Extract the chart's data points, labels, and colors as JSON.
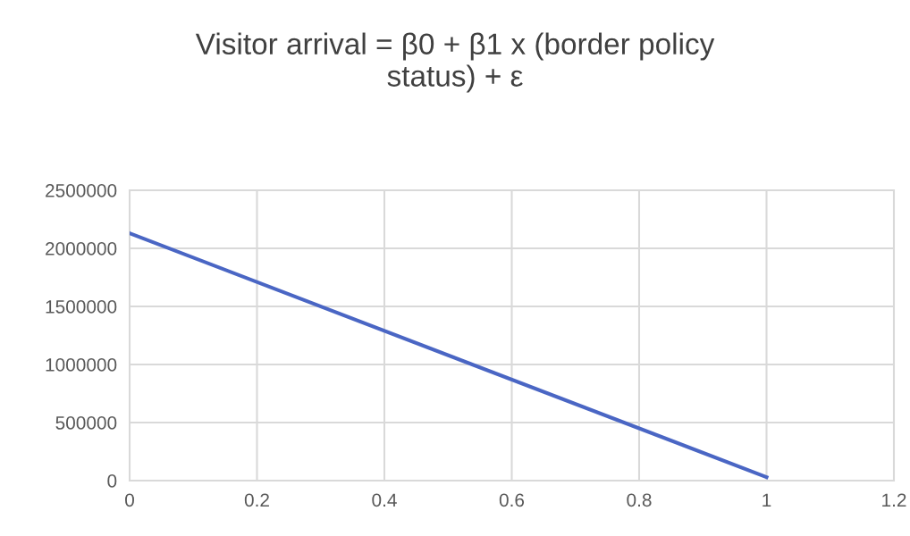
{
  "chart_data": {
    "type": "line",
    "title": "Visitor arrival = β0 + β1 x (border policy\nstatus) + ε",
    "x": [
      0,
      1
    ],
    "series": [
      {
        "color": "#4a66c4",
        "values": [
          2130000,
          30000
        ]
      }
    ],
    "xlim": [
      0,
      1.2
    ],
    "xticks": [
      0,
      0.2,
      0.4,
      0.6,
      0.8,
      1,
      1.2
    ],
    "ylim": [
      0,
      2500000
    ],
    "yticks": [
      0,
      500000,
      1000000,
      1500000,
      2000000,
      2500000
    ],
    "grid": true,
    "marker": "none",
    "line_style": "solid"
  }
}
